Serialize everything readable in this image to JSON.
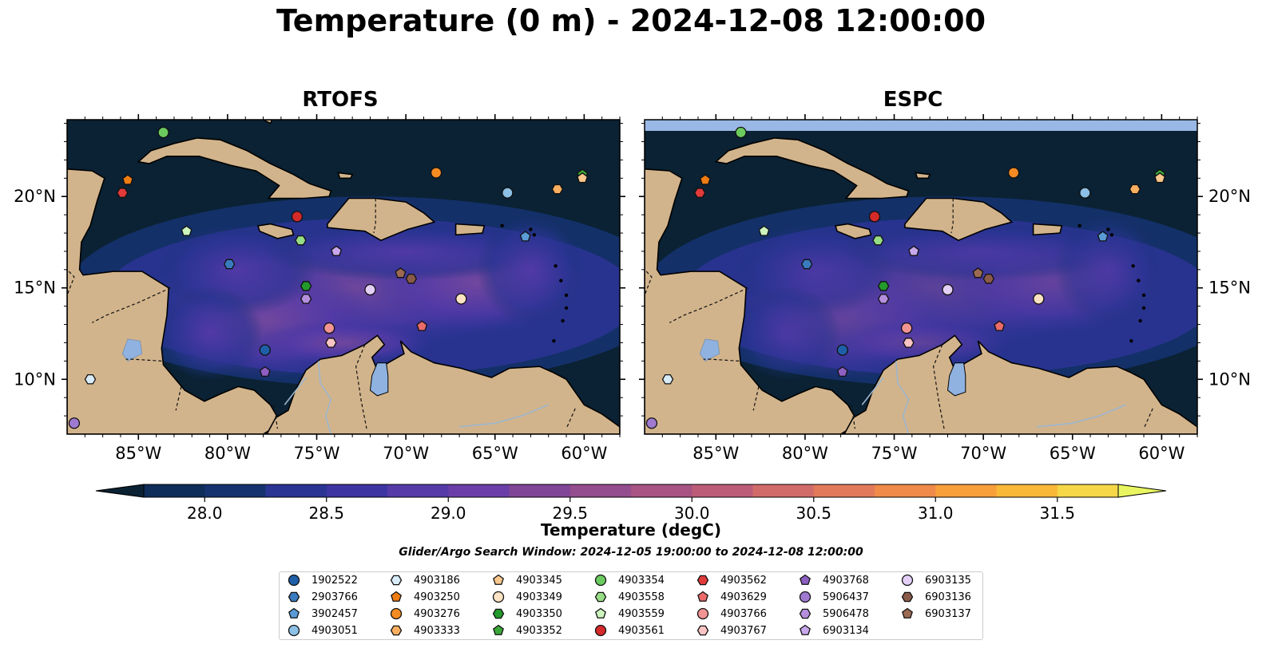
{
  "title": "Temperature (0 m) - 2024-12-08 12:00:00",
  "panels": [
    {
      "title": "RTOFS",
      "top_band": false
    },
    {
      "title": "ESPC",
      "top_band": true
    }
  ],
  "colors": {
    "land": "#d2b48c",
    "ocean_deep": "#0a2233",
    "lake": "#8fb2e0",
    "espc_band": "#99b8e6"
  },
  "axes": {
    "lon_ticks": [
      "85°W",
      "80°W",
      "75°W",
      "70°W",
      "65°W",
      "60°W"
    ],
    "lat_ticks": [
      "20°N",
      "15°N",
      "10°N"
    ]
  },
  "colorbar": {
    "label": "Temperature (degC)",
    "ticks": [
      "28.0",
      "28.5",
      "29.0",
      "29.5",
      "30.0",
      "30.5",
      "31.0",
      "31.5"
    ],
    "min": 28.0,
    "max": 31.5,
    "extend": "both",
    "colors": [
      "#0a2233",
      "#0e2d58",
      "#15326f",
      "#2a3493",
      "#3d35a2",
      "#553aa8",
      "#6a3ea6",
      "#804596",
      "#944d8e",
      "#a75383",
      "#bc5c78",
      "#d06b6a",
      "#e27a5a",
      "#ef8a4a",
      "#f79f3a",
      "#f9b838",
      "#f5d748",
      "#e8f561"
    ]
  },
  "search_window": "Glider/Argo Search Window: 2024-12-05 19:00:00 to 2024-12-08 12:00:00",
  "legend": [
    {
      "label": "1902522",
      "marker": "circle",
      "color": "#1f5fa8"
    },
    {
      "label": "2903766",
      "marker": "hexagon",
      "color": "#3a7bbf"
    },
    {
      "label": "3902457",
      "marker": "pentagon",
      "color": "#5b9bd5"
    },
    {
      "label": "4903051",
      "marker": "circle",
      "color": "#8cc0e6"
    },
    {
      "label": "4903186",
      "marker": "hexagon",
      "color": "#d8ecf8"
    },
    {
      "label": "4903250",
      "marker": "pentagon",
      "color": "#ee7d13"
    },
    {
      "label": "4903276",
      "marker": "circle",
      "color": "#f58b23"
    },
    {
      "label": "4903333",
      "marker": "hexagon",
      "color": "#f9ae60"
    },
    {
      "label": "4903345",
      "marker": "pentagon",
      "color": "#fbc88e"
    },
    {
      "label": "4903349",
      "marker": "circle",
      "color": "#fde3c4"
    },
    {
      "label": "4903350",
      "marker": "hexagon",
      "color": "#239a2b"
    },
    {
      "label": "4903352",
      "marker": "pentagon",
      "color": "#3aa63a"
    },
    {
      "label": "4903354",
      "marker": "circle",
      "color": "#6ccb5f"
    },
    {
      "label": "4903558",
      "marker": "hexagon",
      "color": "#97dd86"
    },
    {
      "label": "4903559",
      "marker": "pentagon",
      "color": "#ccf5bd"
    },
    {
      "label": "4903561",
      "marker": "circle",
      "color": "#d42a2a"
    },
    {
      "label": "4903562",
      "marker": "hexagon",
      "color": "#e03a3a"
    },
    {
      "label": "4903629",
      "marker": "pentagon",
      "color": "#eb6b6b"
    },
    {
      "label": "4903766",
      "marker": "circle",
      "color": "#f29494"
    },
    {
      "label": "4903767",
      "marker": "hexagon",
      "color": "#fbc4c4"
    },
    {
      "label": "4903768",
      "marker": "pentagon",
      "color": "#8d5fc2"
    },
    {
      "label": "5906437",
      "marker": "circle",
      "color": "#a07ad0"
    },
    {
      "label": "5906478",
      "marker": "hexagon",
      "color": "#b58fde"
    },
    {
      "label": "6903134",
      "marker": "pentagon",
      "color": "#c8a8ec"
    },
    {
      "label": "6903135",
      "marker": "circle",
      "color": "#e4d0f7"
    },
    {
      "label": "6903136",
      "marker": "hexagon",
      "color": "#8a5a48"
    },
    {
      "label": "6903137",
      "marker": "pentagon",
      "color": "#9c6a52"
    }
  ],
  "chart_data": {
    "type": "scatter",
    "x_range": [
      -89,
      -58
    ],
    "y_range": [
      7,
      24.2
    ],
    "points": [
      {
        "id": "4903354",
        "lon": -83.6,
        "lat": 23.5
      },
      {
        "id": "4903250",
        "lon": -85.6,
        "lat": 20.9
      },
      {
        "id": "4903562",
        "lon": -85.9,
        "lat": 20.2
      },
      {
        "id": "4903276",
        "lon": -68.3,
        "lat": 21.3
      },
      {
        "id": "4903352",
        "lon": -60.1,
        "lat": 21.2
      },
      {
        "id": "4903345",
        "lon": -60.1,
        "lat": 21.0
      },
      {
        "id": "4903051",
        "lon": -64.3,
        "lat": 20.2
      },
      {
        "id": "4903333",
        "lon": -61.5,
        "lat": 20.4
      },
      {
        "id": "4903561",
        "lon": -76.1,
        "lat": 18.9
      },
      {
        "id": "3902457",
        "lon": -63.3,
        "lat": 17.8
      },
      {
        "id": "4903559",
        "lon": -82.3,
        "lat": 18.1
      },
      {
        "id": "4903558",
        "lon": -75.9,
        "lat": 17.6
      },
      {
        "id": "6903134",
        "lon": -73.9,
        "lat": 17.0
      },
      {
        "id": "2903766",
        "lon": -79.9,
        "lat": 16.3
      },
      {
        "id": "6903137",
        "lon": -70.3,
        "lat": 15.8
      },
      {
        "id": "6903136",
        "lon": -69.7,
        "lat": 15.5
      },
      {
        "id": "4903350",
        "lon": -75.6,
        "lat": 15.1
      },
      {
        "id": "6903135",
        "lon": -72.0,
        "lat": 14.9
      },
      {
        "id": "5906478",
        "lon": -75.6,
        "lat": 14.4
      },
      {
        "id": "4903349",
        "lon": -66.9,
        "lat": 14.4
      },
      {
        "id": "4903766",
        "lon": -74.3,
        "lat": 12.8
      },
      {
        "id": "4903629",
        "lon": -69.1,
        "lat": 12.9
      },
      {
        "id": "4903767",
        "lon": -74.2,
        "lat": 12.0
      },
      {
        "id": "1902522",
        "lon": -77.9,
        "lat": 11.6
      },
      {
        "id": "4903768",
        "lon": -77.9,
        "lat": 10.4
      },
      {
        "id": "4903186",
        "lon": -87.7,
        "lat": 10.0
      },
      {
        "id": "5906437",
        "lon": -88.6,
        "lat": 7.6
      }
    ]
  }
}
